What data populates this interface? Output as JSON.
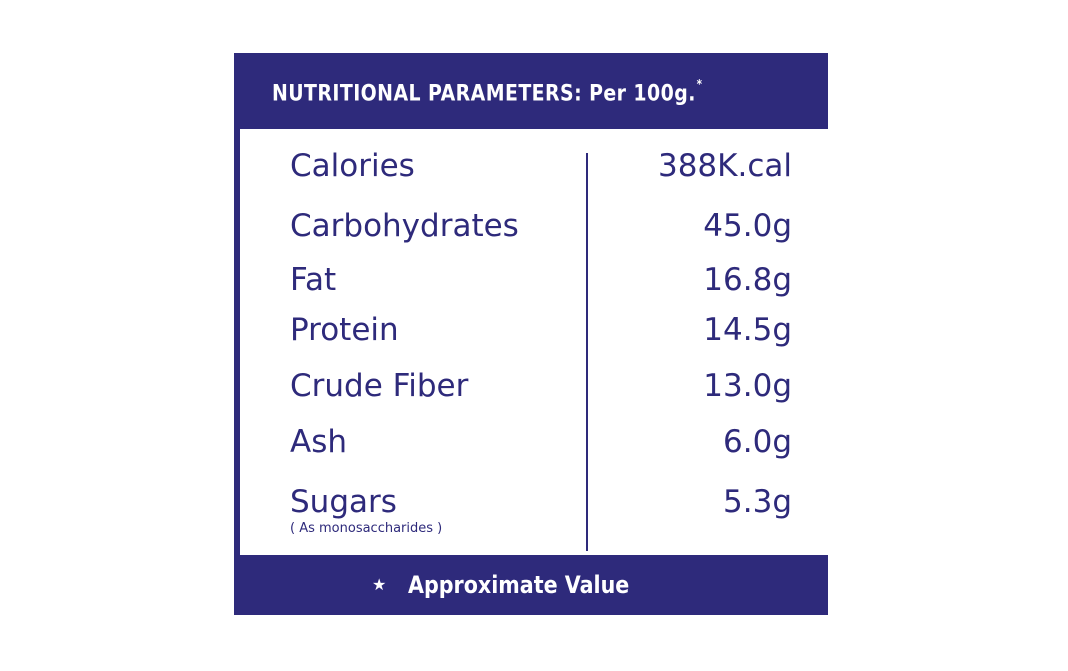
{
  "header": {
    "title": "NUTRITIONAL  PARAMETERS: Per  100g.",
    "asterisk": "*"
  },
  "rows": [
    {
      "label": "Calories",
      "value": "388K.cal"
    },
    {
      "label": "Carbohydrates",
      "value": "45.0g"
    },
    {
      "label": "Fat",
      "value": "16.8g"
    },
    {
      "label": "Protein",
      "value": "14.5g"
    },
    {
      "label": "Crude Fiber",
      "value": "13.0g"
    },
    {
      "label": "Ash",
      "value": "6.0g"
    },
    {
      "label": "Sugars",
      "value": "5.3g",
      "note": "( As monosaccharides )"
    }
  ],
  "footer": {
    "star": "★",
    "text": "Approximate Value"
  },
  "colors": {
    "brand": "#2e2a7b",
    "background": "#ffffff"
  }
}
